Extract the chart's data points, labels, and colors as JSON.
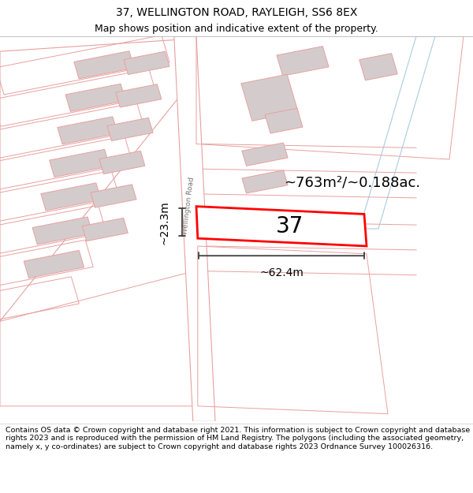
{
  "title_line1": "37, WELLINGTON ROAD, RAYLEIGH, SS6 8EX",
  "title_line2": "Map shows position and indicative extent of the property.",
  "footer_text": "Contains OS data © Crown copyright and database right 2021. This information is subject to Crown copyright and database rights 2023 and is reproduced with the permission of HM Land Registry. The polygons (including the associated geometry, namely x, y co-ordinates) are subject to Crown copyright and database rights 2023 Ordnance Survey 100026316.",
  "area_label": "~763m²/~0.188ac.",
  "width_label": "~62.4m",
  "height_label": "~23.3m",
  "number_label": "37",
  "road_label": "Wellington Road",
  "bg_color": "#ffffff",
  "map_bg": "#ffffff",
  "building_fill": "#d4cccc",
  "pink_line_color": "#e8a0a0",
  "blue_line_color": "#aacce0",
  "plot_fill": "#ffffff",
  "plot_edge": "#ff0000",
  "plot_edge_width": 2.0,
  "dim_line_color": "#404040",
  "title_fontsize": 10,
  "subtitle_fontsize": 9,
  "footer_fontsize": 6.8,
  "area_fontsize": 13,
  "number_fontsize": 20,
  "road_label_fontsize": 6.5,
  "dim_fontsize": 10
}
